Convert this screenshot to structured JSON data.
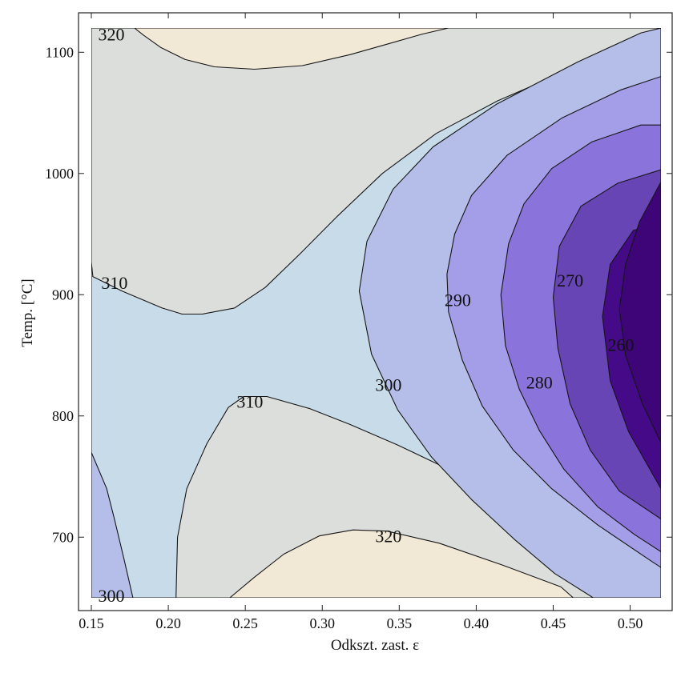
{
  "chart_data": {
    "type": "contour",
    "title": "",
    "xlabel": "Odkszt. zast. ε",
    "ylabel": "Temp. [°C]",
    "xlim": [
      0.15,
      0.52
    ],
    "ylim": [
      650,
      1120
    ],
    "xticks": [
      {
        "value": 0.15,
        "label": "0.15"
      },
      {
        "value": 0.2,
        "label": "0.20"
      },
      {
        "value": 0.25,
        "label": "0.25"
      },
      {
        "value": 0.3,
        "label": "0.30"
      },
      {
        "value": 0.35,
        "label": "0.35"
      },
      {
        "value": 0.4,
        "label": "0.40"
      },
      {
        "value": 0.45,
        "label": "0.45"
      },
      {
        "value": 0.5,
        "label": "0.50"
      }
    ],
    "yticks": [
      {
        "value": 700,
        "label": "700"
      },
      {
        "value": 800,
        "label": "800"
      },
      {
        "value": 900,
        "label": "900"
      },
      {
        "value": 1000,
        "label": "1000"
      },
      {
        "value": 1100,
        "label": "1100"
      }
    ],
    "contour_levels": [
      250,
      260,
      270,
      280,
      290,
      300,
      310,
      320
    ],
    "level_colors": [
      "#440a88",
      "#6845b5",
      "#8a74dc",
      "#a39ee7",
      "#b5bee8",
      "#c8dbe8",
      "#dcdedc",
      "#f2e8d6"
    ],
    "contour_labels": [
      {
        "text": "320",
        "x": 0.163,
        "y": 1115
      },
      {
        "text": "310",
        "x": 0.165,
        "y": 910
      },
      {
        "text": "290",
        "x": 0.388,
        "y": 896
      },
      {
        "text": "270",
        "x": 0.461,
        "y": 912
      },
      {
        "text": "260",
        "x": 0.494,
        "y": 859
      },
      {
        "text": "280",
        "x": 0.441,
        "y": 828
      },
      {
        "text": "300",
        "x": 0.343,
        "y": 826
      },
      {
        "text": "310",
        "x": 0.253,
        "y": 812
      },
      {
        "text": "320",
        "x": 0.343,
        "y": 701
      },
      {
        "text": "300",
        "x": 0.163,
        "y": 652
      }
    ],
    "regions": [
      {
        "name": "region-300-310",
        "level": 300,
        "points": [
          [
            0.15,
            1120
          ],
          [
            0.52,
            1120
          ],
          [
            0.52,
            650
          ],
          [
            0.15,
            650
          ]
        ]
      },
      {
        "name": "region-310-320-upper",
        "level": 310,
        "points": [
          [
            0.15,
            1120
          ],
          [
            0.549,
            1120
          ],
          [
            0.53,
            1114
          ],
          [
            0.494,
            1100
          ],
          [
            0.456,
            1083
          ],
          [
            0.414,
            1060
          ],
          [
            0.374,
            1033
          ],
          [
            0.339,
            1000
          ],
          [
            0.31,
            965
          ],
          [
            0.285,
            933
          ],
          [
            0.263,
            906
          ],
          [
            0.243,
            889
          ],
          [
            0.222,
            884
          ],
          [
            0.209,
            884
          ],
          [
            0.196,
            889
          ],
          [
            0.17,
            903
          ],
          [
            0.151,
            915
          ],
          [
            0.15,
            927
          ]
        ]
      },
      {
        "name": "region-310-320-lower",
        "level": 310,
        "points": [
          [
            0.205,
            650
          ],
          [
            0.206,
            700
          ],
          [
            0.212,
            740
          ],
          [
            0.225,
            777
          ],
          [
            0.239,
            807
          ],
          [
            0.249,
            816
          ],
          [
            0.264,
            816
          ],
          [
            0.292,
            806
          ],
          [
            0.318,
            793
          ],
          [
            0.349,
            776
          ],
          [
            0.382,
            756
          ],
          [
            0.424,
            731
          ],
          [
            0.479,
            698
          ],
          [
            0.52,
            676
          ],
          [
            0.52,
            650
          ]
        ]
      },
      {
        "name": "region-320-upper",
        "level": 320,
        "points": [
          [
            0.178,
            1120
          ],
          [
            0.382,
            1120
          ],
          [
            0.365,
            1115
          ],
          [
            0.343,
            1107
          ],
          [
            0.318,
            1098
          ],
          [
            0.287,
            1089
          ],
          [
            0.256,
            1086
          ],
          [
            0.23,
            1088
          ],
          [
            0.211,
            1094
          ],
          [
            0.195,
            1104
          ],
          [
            0.184,
            1114
          ]
        ]
      },
      {
        "name": "region-320-lower",
        "level": 320,
        "points": [
          [
            0.24,
            650
          ],
          [
            0.256,
            667
          ],
          [
            0.275,
            686
          ],
          [
            0.298,
            701
          ],
          [
            0.32,
            706
          ],
          [
            0.342,
            705
          ],
          [
            0.376,
            695
          ],
          [
            0.417,
            677
          ],
          [
            0.455,
            659
          ],
          [
            0.463,
            650
          ]
        ]
      },
      {
        "name": "region-290-300-left",
        "level": 290,
        "points": [
          [
            0.15,
            770
          ],
          [
            0.16,
            740
          ],
          [
            0.165,
            715
          ],
          [
            0.171,
            683
          ],
          [
            0.177,
            650
          ],
          [
            0.15,
            650
          ]
        ]
      },
      {
        "name": "region-290-300",
        "level": 290,
        "points": [
          [
            0.52,
            1120
          ],
          [
            0.52,
            650
          ],
          [
            0.476,
            650
          ],
          [
            0.451,
            670
          ],
          [
            0.425,
            698
          ],
          [
            0.397,
            731
          ],
          [
            0.371,
            766
          ],
          [
            0.349,
            805
          ],
          [
            0.332,
            851
          ],
          [
            0.324,
            903
          ],
          [
            0.329,
            944
          ],
          [
            0.346,
            987
          ],
          [
            0.372,
            1022
          ],
          [
            0.413,
            1057
          ],
          [
            0.466,
            1092
          ],
          [
            0.507,
            1116
          ]
        ]
      },
      {
        "name": "region-280-290",
        "level": 280,
        "points": [
          [
            0.52,
            1080
          ],
          [
            0.52,
            675
          ],
          [
            0.514,
            680
          ],
          [
            0.479,
            710
          ],
          [
            0.449,
            740
          ],
          [
            0.424,
            772
          ],
          [
            0.404,
            808
          ],
          [
            0.391,
            846
          ],
          [
            0.382,
            886
          ],
          [
            0.381,
            917
          ],
          [
            0.386,
            950
          ],
          [
            0.397,
            982
          ],
          [
            0.42,
            1015
          ],
          [
            0.456,
            1046
          ],
          [
            0.494,
            1069
          ]
        ]
      },
      {
        "name": "region-270-280",
        "level": 270,
        "points": [
          [
            0.52,
            1040
          ],
          [
            0.52,
            688
          ],
          [
            0.503,
            702
          ],
          [
            0.479,
            725
          ],
          [
            0.457,
            756
          ],
          [
            0.441,
            788
          ],
          [
            0.428,
            822
          ],
          [
            0.419,
            858
          ],
          [
            0.416,
            900
          ],
          [
            0.421,
            942
          ],
          [
            0.431,
            975
          ],
          [
            0.449,
            1004
          ],
          [
            0.475,
            1026
          ],
          [
            0.507,
            1040
          ]
        ]
      },
      {
        "name": "region-260-270",
        "level": 260,
        "points": [
          [
            0.52,
            1003
          ],
          [
            0.52,
            715
          ],
          [
            0.493,
            738
          ],
          [
            0.474,
            772
          ],
          [
            0.461,
            810
          ],
          [
            0.453,
            856
          ],
          [
            0.45,
            898
          ],
          [
            0.454,
            940
          ],
          [
            0.468,
            973
          ],
          [
            0.492,
            992
          ]
        ]
      },
      {
        "name": "region-250-260",
        "level": 250,
        "points": [
          [
            0.52,
            960
          ],
          [
            0.52,
            740
          ],
          [
            0.499,
            787
          ],
          [
            0.487,
            829
          ],
          [
            0.482,
            882
          ],
          [
            0.487,
            925
          ],
          [
            0.502,
            953
          ]
        ]
      },
      {
        "name": "region-lt-250",
        "level": 240,
        "points": [
          [
            0.52,
            993
          ],
          [
            0.52,
            778
          ],
          [
            0.508,
            810
          ],
          [
            0.497,
            850
          ],
          [
            0.493,
            888
          ],
          [
            0.497,
            925
          ],
          [
            0.506,
            960
          ]
        ]
      }
    ]
  }
}
